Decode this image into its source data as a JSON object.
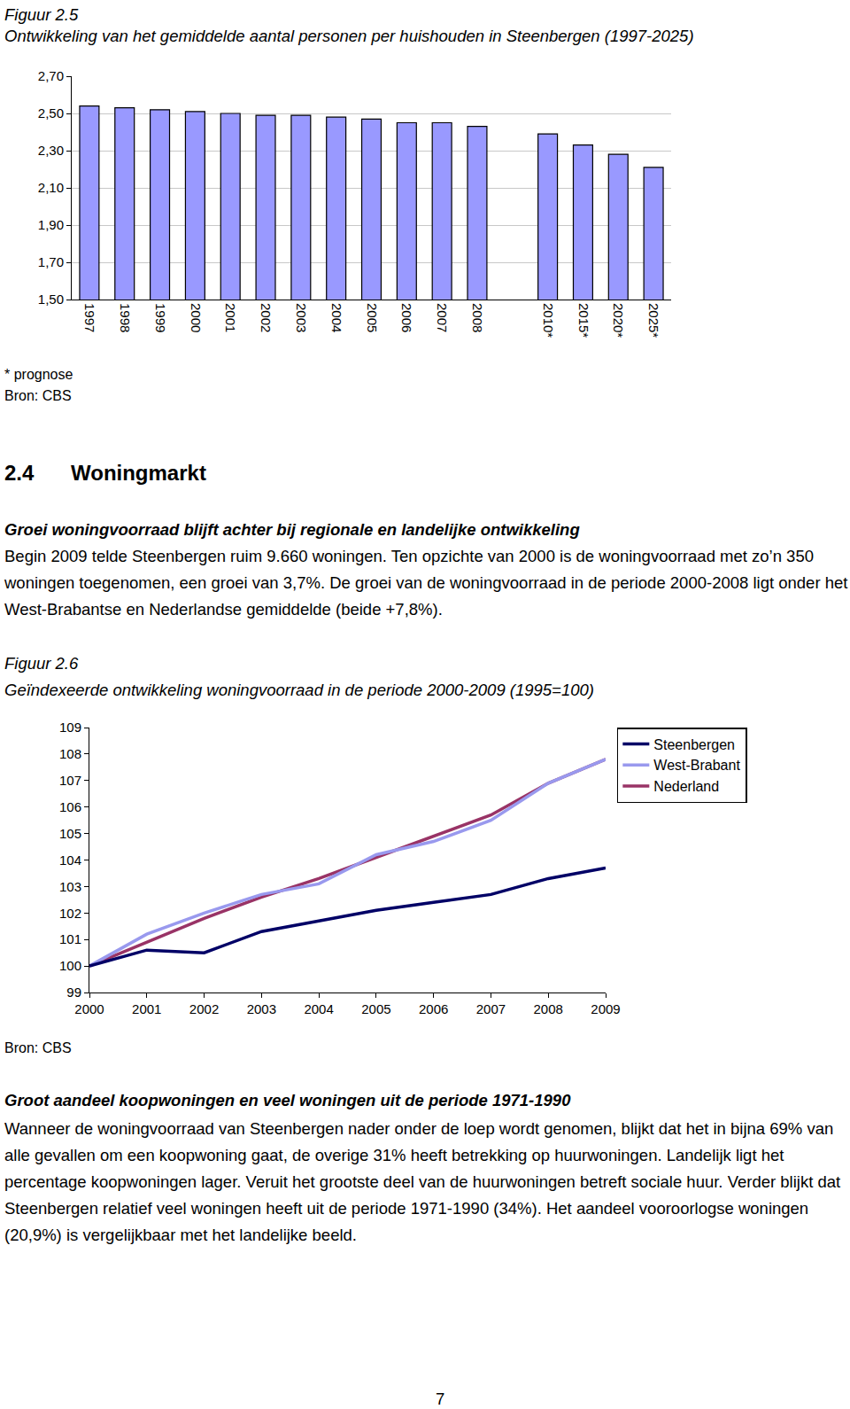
{
  "chart_data": [
    {
      "type": "bar",
      "figure": "Figuur 2.5",
      "title": "Ontwikkeling van het gemiddelde aantal personen per huishouden in Steenbergen (1997-2025)",
      "notes": [
        "* prognose",
        "Bron: CBS"
      ],
      "categories": [
        "1997",
        "1998",
        "1999",
        "2000",
        "2001",
        "2002",
        "2003",
        "2004",
        "2005",
        "2006",
        "2007",
        "2008",
        null,
        "2010*",
        "2015*",
        "2020*",
        "2025*"
      ],
      "values": [
        2.54,
        2.53,
        2.52,
        2.51,
        2.5,
        2.49,
        2.49,
        2.48,
        2.47,
        2.45,
        2.45,
        2.43,
        null,
        2.39,
        2.33,
        2.28,
        2.21
      ],
      "color": "#9999ff",
      "ylim": [
        1.5,
        2.7
      ],
      "yticks": [
        {
          "value": 1.5,
          "label": "1,50"
        },
        {
          "value": 1.7,
          "label": "1,70"
        },
        {
          "value": 1.9,
          "label": "1,90"
        },
        {
          "value": 2.1,
          "label": "2,10"
        },
        {
          "value": 2.3,
          "label": "2,30"
        },
        {
          "value": 2.5,
          "label": "2,50"
        },
        {
          "value": 2.7,
          "label": "2,70"
        }
      ],
      "grid": true
    },
    {
      "type": "line",
      "figure": "Figuur 2.6",
      "title": "Geïndexeerde ontwikkeling woningvoorraad in de periode 2000-2009 (1995=100)",
      "notes": [
        "Bron: CBS"
      ],
      "categories": [
        "2000",
        "2001",
        "2002",
        "2003",
        "2004",
        "2005",
        "2006",
        "2007",
        "2008",
        "2009"
      ],
      "series": [
        {
          "name": "Steenbergen",
          "color": "#000066",
          "values": [
            100,
            100.6,
            100.5,
            101.3,
            101.7,
            102.1,
            102.4,
            102.7,
            103.3,
            103.7
          ]
        },
        {
          "name": "West-Brabant",
          "color": "#9999ee",
          "values": [
            100,
            101.2,
            102.0,
            102.7,
            103.1,
            104.2,
            104.7,
            105.5,
            106.9,
            107.8
          ]
        },
        {
          "name": "Nederland",
          "color": "#993366",
          "values": [
            100,
            100.9,
            101.8,
            102.6,
            103.3,
            104.1,
            104.9,
            105.7,
            106.9,
            107.8
          ]
        }
      ],
      "ylim": [
        99,
        109
      ],
      "yticks": [
        99,
        100,
        101,
        102,
        103,
        104,
        105,
        106,
        107,
        108,
        109
      ],
      "grid": false,
      "legend": "right"
    }
  ],
  "document": {
    "section": {
      "number": "2.4",
      "title": "Woningmarkt"
    },
    "blocks": [
      {
        "heading": "Groei woningvoorraad blijft achter bij regionale en landelijke ontwikkeling",
        "text": "Begin 2009 telde Steenbergen ruim 9.660 woningen. Ten opzichte van 2000 is de woningvoorraad met zo’n 350 woningen toegenomen, een groei van 3,7%. De groei van de woningvoorraad in de periode 2000-2008 ligt onder het West-Brabantse en Nederlandse gemiddelde (beide +7,8%)."
      },
      {
        "heading": "Groot aandeel koopwoningen en veel woningen uit de periode 1971-1990",
        "text": "Wanneer de woningvoorraad van Steenbergen nader onder de loep wordt genomen, blijkt dat het in bijna 69% van alle gevallen om een koopwoning gaat, de overige 31% heeft betrekking op huurwoningen. Landelijk ligt het percentage koopwoningen lager. Veruit het grootste deel van de huurwoningen betreft sociale huur. Verder blijkt dat Steenbergen relatief veel woningen heeft uit de periode 1971-1990 (34%). Het aandeel vooroorlogse woningen (20,9%) is vergelijkbaar met het landelijke beeld."
      }
    ],
    "page_number": "7"
  }
}
